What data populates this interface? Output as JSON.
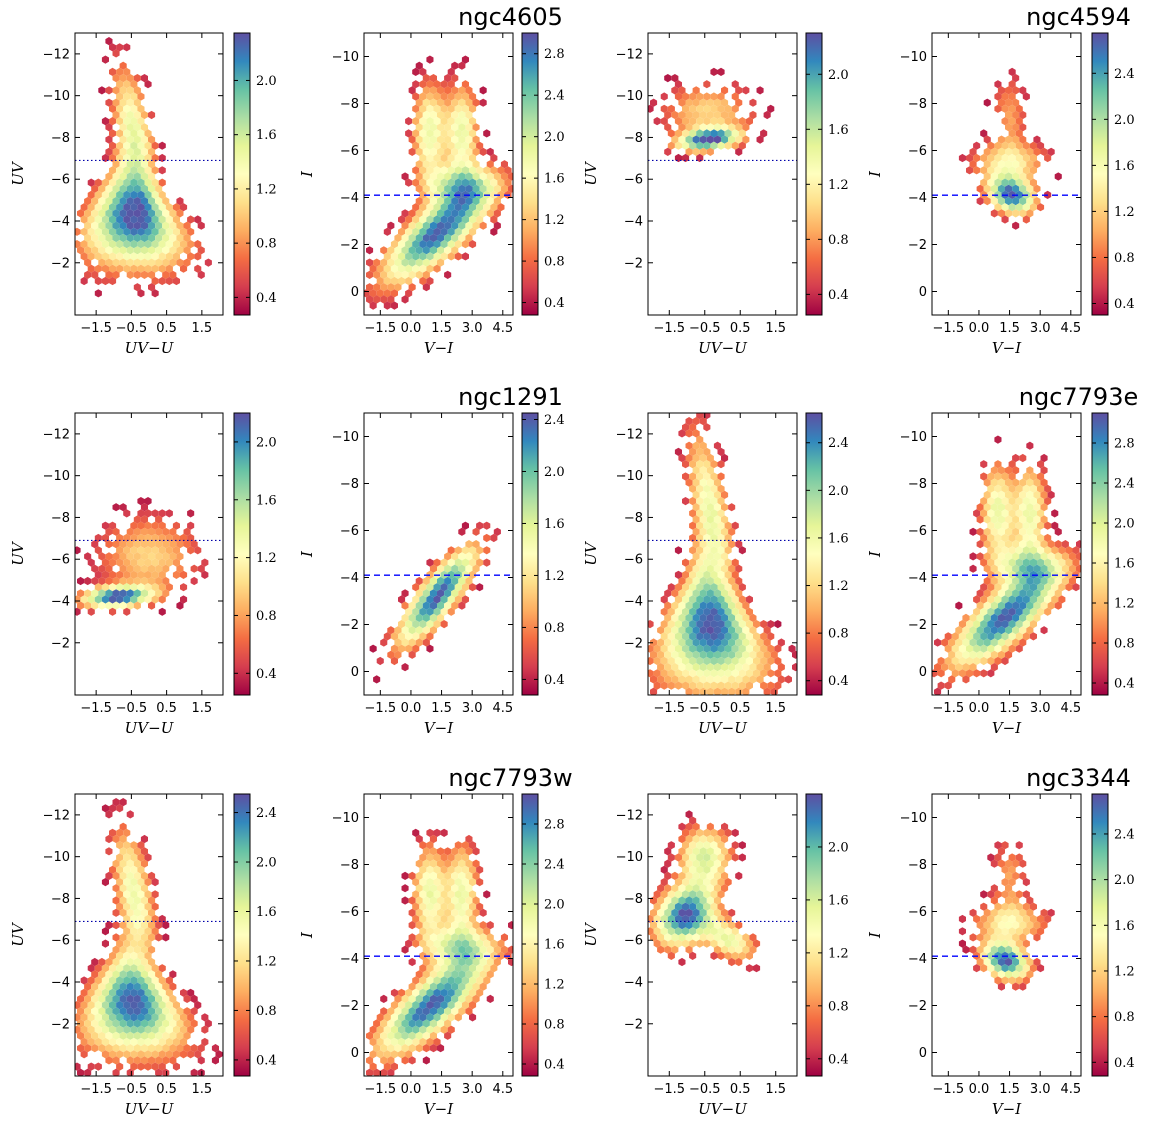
{
  "chart_data": [
    {
      "type": "scatter",
      "title": "",
      "xlabel": "UV−U",
      "ylabel": "UV",
      "xlim": [
        -2.1,
        2.1
      ],
      "ylim": [
        -13,
        0.5
      ],
      "xticks": [
        "−1.5",
        "−0.5",
        "0.5",
        "1.5"
      ],
      "xtick_values": [
        -1.5,
        -0.5,
        0.5,
        1.5
      ],
      "yticks": [
        "−12",
        "−10",
        "−8",
        "−6",
        "−4",
        "−2"
      ],
      "ytick_values": [
        -12,
        -10,
        -8,
        -6,
        -4,
        -2
      ],
      "hline": {
        "y": -6.9,
        "style": "dotted"
      },
      "cbar": {
        "min": 0.27,
        "max": 2.35,
        "ticks": [
          "0.4",
          "0.8",
          "1.2",
          "1.6",
          "2.0"
        ],
        "tick_values": [
          0.4,
          0.8,
          1.2,
          1.6,
          2.0
        ]
      },
      "cmc": "wedge",
      "peak": {
        "x": -0.5,
        "y": -4.2
      }
    },
    {
      "type": "scatter",
      "title": "ngc4605",
      "xlabel": "V−I",
      "ylabel": "I",
      "xlim": [
        -2.3,
        5.0
      ],
      "ylim": [
        -11,
        1
      ],
      "xticks": [
        "−1.5",
        "0.0",
        "1.5",
        "3.0",
        "4.5"
      ],
      "xtick_values": [
        -1.5,
        0.0,
        1.5,
        3.0,
        4.5
      ],
      "yticks": [
        "−10",
        "−8",
        "−6",
        "−4",
        "−2",
        "0"
      ],
      "ytick_values": [
        -10,
        -8,
        -6,
        -4,
        -2,
        0
      ],
      "hline": {
        "y": -4.1,
        "style": "dashed"
      },
      "cbar": {
        "min": 0.28,
        "max": 3.0,
        "ticks": [
          "0.4",
          "0.8",
          "1.2",
          "1.6",
          "2.0",
          "2.4",
          "2.8"
        ],
        "tick_values": [
          0.4,
          0.8,
          1.2,
          1.6,
          2.0,
          2.4,
          2.8
        ]
      },
      "cmc": "vi_double",
      "peak": {
        "x": 1.3,
        "y": -2.5
      }
    },
    {
      "type": "scatter",
      "title": "",
      "xlabel": "UV−U",
      "ylabel": "UV",
      "xlim": [
        -2.1,
        2.1
      ],
      "ylim": [
        -13,
        0.5
      ],
      "xticks": [
        "−1.5",
        "−0.5",
        "0.5",
        "1.5"
      ],
      "xtick_values": [
        -1.5,
        -0.5,
        0.5,
        1.5
      ],
      "yticks": [
        "−12",
        "−10",
        "−8",
        "−6",
        "−4",
        "−2"
      ],
      "ytick_values": [
        -12,
        -10,
        -8,
        -6,
        -4,
        -2
      ],
      "hline": {
        "y": -6.9,
        "style": "dotted"
      },
      "cbar": {
        "min": 0.25,
        "max": 2.3,
        "ticks": [
          "0.4",
          "0.8",
          "1.2",
          "1.6",
          "2.0"
        ],
        "tick_values": [
          0.4,
          0.8,
          1.2,
          1.6,
          2.0
        ]
      },
      "cmc": "bright_blob",
      "peak": {
        "x": -0.4,
        "y": -7.9
      }
    },
    {
      "type": "scatter",
      "title": "ngc4594",
      "xlabel": "V−I",
      "ylabel": "I",
      "xlim": [
        -2.3,
        5.0
      ],
      "ylim": [
        -11,
        1
      ],
      "xticks": [
        "−1.5",
        "0.0",
        "1.5",
        "3.0",
        "4.5"
      ],
      "xtick_values": [
        -1.5,
        0.0,
        1.5,
        3.0,
        4.5
      ],
      "yticks": [
        "−10",
        "−8",
        "−6",
        "−4",
        "−2",
        "0"
      ],
      "ytick_values": [
        -10,
        -8,
        -6,
        -4,
        -2,
        0
      ],
      "hline": {
        "y": -4.1,
        "style": "dashed"
      },
      "cbar": {
        "min": 0.3,
        "max": 2.75,
        "ticks": [
          "0.4",
          "0.8",
          "1.2",
          "1.6",
          "2.0",
          "2.4"
        ],
        "tick_values": [
          0.4,
          0.8,
          1.2,
          1.6,
          2.0,
          2.4
        ]
      },
      "cmc": "vi_blob",
      "peak": {
        "x": 1.6,
        "y": -4.1
      }
    },
    {
      "type": "scatter",
      "title": "",
      "xlabel": "UV−U",
      "ylabel": "UV",
      "xlim": [
        -2.1,
        2.1
      ],
      "ylim": [
        -13,
        0.5
      ],
      "xticks": [
        "−1.5",
        "−0.5",
        "0.5",
        "1.5"
      ],
      "xtick_values": [
        -1.5,
        -0.5,
        0.5,
        1.5
      ],
      "yticks": [
        "−12",
        "−10",
        "−8",
        "−6",
        "−4",
        "−2"
      ],
      "ytick_values": [
        -12,
        -10,
        -8,
        -6,
        -4,
        -2
      ],
      "hline": {
        "y": -6.9,
        "style": "dotted"
      },
      "cbar": {
        "min": 0.25,
        "max": 2.2,
        "ticks": [
          "0.4",
          "0.8",
          "1.2",
          "1.6",
          "2.0"
        ],
        "tick_values": [
          0.4,
          0.8,
          1.2,
          1.6,
          2.0
        ]
      },
      "cmc": "low_blob",
      "peak": {
        "x": -0.9,
        "y": -4.2
      }
    },
    {
      "type": "scatter",
      "title": "ngc1291",
      "xlabel": "V−I",
      "ylabel": "I",
      "xlim": [
        -2.3,
        5.0
      ],
      "ylim": [
        -11,
        1
      ],
      "xticks": [
        "−1.5",
        "0.0",
        "1.5",
        "3.0",
        "4.5"
      ],
      "xtick_values": [
        -1.5,
        0.0,
        1.5,
        3.0,
        4.5
      ],
      "yticks": [
        "−10",
        "−8",
        "−6",
        "−4",
        "−2",
        "0"
      ],
      "ytick_values": [
        -10,
        -8,
        -6,
        -4,
        -2,
        0
      ],
      "hline": {
        "y": -4.1,
        "style": "dashed"
      },
      "cbar": {
        "min": 0.28,
        "max": 2.45,
        "ticks": [
          "0.4",
          "0.8",
          "1.2",
          "1.6",
          "2.0",
          "2.4"
        ],
        "tick_values": [
          0.4,
          0.8,
          1.2,
          1.6,
          2.0,
          2.4
        ]
      },
      "cmc": "vi_diag",
      "peak": {
        "x": 1.3,
        "y": -3.2
      }
    },
    {
      "type": "scatter",
      "title": "",
      "xlabel": "UV−U",
      "ylabel": "UV",
      "xlim": [
        -2.1,
        2.1
      ],
      "ylim": [
        -13,
        0.5
      ],
      "xticks": [
        "−1.5",
        "−0.5",
        "0.5",
        "1.5"
      ],
      "xtick_values": [
        -1.5,
        -0.5,
        0.5,
        1.5
      ],
      "yticks": [
        "−12",
        "−10",
        "−8",
        "−6",
        "−4",
        "−2"
      ],
      "ytick_values": [
        -12,
        -10,
        -8,
        -6,
        -4,
        -2
      ],
      "hline": {
        "y": -6.9,
        "style": "dotted"
      },
      "cbar": {
        "min": 0.28,
        "max": 2.65,
        "ticks": [
          "0.4",
          "0.8",
          "1.2",
          "1.6",
          "2.0",
          "2.4"
        ],
        "tick_values": [
          0.4,
          0.8,
          1.2,
          1.6,
          2.0,
          2.4
        ]
      },
      "cmc": "wedge_tall",
      "peak": {
        "x": -0.4,
        "y": -2.8
      }
    },
    {
      "type": "scatter",
      "title": "ngc7793e",
      "xlabel": "V−I",
      "ylabel": "I",
      "xlim": [
        -2.3,
        5.0
      ],
      "ylim": [
        -11,
        1
      ],
      "xticks": [
        "−1.5",
        "0.0",
        "1.5",
        "3.0",
        "4.5"
      ],
      "xtick_values": [
        -1.5,
        0.0,
        1.5,
        3.0,
        4.5
      ],
      "yticks": [
        "−10",
        "−8",
        "−6",
        "−4",
        "−2",
        "0"
      ],
      "ytick_values": [
        -10,
        -8,
        -6,
        -4,
        -2,
        0
      ],
      "hline": {
        "y": -4.1,
        "style": "dashed"
      },
      "cbar": {
        "min": 0.28,
        "max": 3.1,
        "ticks": [
          "0.4",
          "0.8",
          "1.2",
          "1.6",
          "2.0",
          "2.4",
          "2.8"
        ],
        "tick_values": [
          0.4,
          0.8,
          1.2,
          1.6,
          2.0,
          2.4,
          2.8
        ]
      },
      "cmc": "vi_double",
      "peak": {
        "x": 1.3,
        "y": -2.3
      }
    },
    {
      "type": "scatter",
      "title": "",
      "xlabel": "UV−U",
      "ylabel": "UV",
      "xlim": [
        -2.1,
        2.1
      ],
      "ylim": [
        -13,
        0.5
      ],
      "xticks": [
        "−1.5",
        "−0.5",
        "0.5",
        "1.5"
      ],
      "xtick_values": [
        -1.5,
        -0.5,
        0.5,
        1.5
      ],
      "yticks": [
        "−12",
        "−10",
        "−8",
        "−6",
        "−4",
        "−2"
      ],
      "ytick_values": [
        -12,
        -10,
        -8,
        -6,
        -4,
        -2
      ],
      "hline": {
        "y": -6.9,
        "style": "dotted"
      },
      "cbar": {
        "min": 0.27,
        "max": 2.55,
        "ticks": [
          "0.4",
          "0.8",
          "1.2",
          "1.6",
          "2.0",
          "2.4"
        ],
        "tick_values": [
          0.4,
          0.8,
          1.2,
          1.6,
          2.0,
          2.4
        ]
      },
      "cmc": "wedge",
      "peak": {
        "x": -0.5,
        "y": -3.0
      }
    },
    {
      "type": "scatter",
      "title": "ngc7793w",
      "xlabel": "V−I",
      "ylabel": "I",
      "xlim": [
        -2.3,
        5.0
      ],
      "ylim": [
        -11,
        1
      ],
      "xticks": [
        "−1.5",
        "0.0",
        "1.5",
        "3.0",
        "4.5"
      ],
      "xtick_values": [
        -1.5,
        0.0,
        1.5,
        3.0,
        4.5
      ],
      "yticks": [
        "−10",
        "−8",
        "−6",
        "−4",
        "−2",
        "0"
      ],
      "ytick_values": [
        -10,
        -8,
        -6,
        -4,
        -2,
        0
      ],
      "hline": {
        "y": -4.1,
        "style": "dashed"
      },
      "cbar": {
        "min": 0.28,
        "max": 3.1,
        "ticks": [
          "0.4",
          "0.8",
          "1.2",
          "1.6",
          "2.0",
          "2.4",
          "2.8"
        ],
        "tick_values": [
          0.4,
          0.8,
          1.2,
          1.6,
          2.0,
          2.4,
          2.8
        ]
      },
      "cmc": "vi_double",
      "peak": {
        "x": 1.0,
        "y": -2.0
      }
    },
    {
      "type": "scatter",
      "title": "",
      "xlabel": "UV−U",
      "ylabel": "UV",
      "xlim": [
        -2.1,
        2.1
      ],
      "ylim": [
        -13,
        0.5
      ],
      "xticks": [
        "−1.5",
        "−0.5",
        "0.5",
        "1.5"
      ],
      "xtick_values": [
        -1.5,
        -0.5,
        0.5,
        1.5
      ],
      "yticks": [
        "−12",
        "−10",
        "−8",
        "−6",
        "−4",
        "−2"
      ],
      "ytick_values": [
        -12,
        -10,
        -8,
        -6,
        -4,
        -2
      ],
      "hline": {
        "y": -6.9,
        "style": "dotted"
      },
      "cbar": {
        "min": 0.27,
        "max": 2.4,
        "ticks": [
          "0.4",
          "0.8",
          "1.2",
          "1.6",
          "2.0"
        ],
        "tick_values": [
          0.4,
          0.8,
          1.2,
          1.6,
          2.0
        ]
      },
      "cmc": "inv_wedge",
      "peak": {
        "x": -0.8,
        "y": -7.2
      }
    },
    {
      "type": "scatter",
      "title": "ngc3344",
      "xlabel": "V−I",
      "ylabel": "I",
      "xlim": [
        -2.3,
        5.0
      ],
      "ylim": [
        -11,
        1
      ],
      "xticks": [
        "−1.5",
        "0.0",
        "1.5",
        "3.0",
        "4.5"
      ],
      "xtick_values": [
        -1.5,
        0.0,
        1.5,
        3.0,
        4.5
      ],
      "yticks": [
        "−10",
        "−8",
        "−6",
        "−4",
        "−2",
        "0"
      ],
      "ytick_values": [
        -10,
        -8,
        -6,
        -4,
        -2,
        0
      ],
      "hline": {
        "y": -4.1,
        "style": "dashed"
      },
      "cbar": {
        "min": 0.28,
        "max": 2.75,
        "ticks": [
          "0.4",
          "0.8",
          "1.2",
          "1.6",
          "2.0",
          "2.4"
        ],
        "tick_values": [
          0.4,
          0.8,
          1.2,
          1.6,
          2.0,
          2.4
        ]
      },
      "cmc": "vi_blob",
      "peak": {
        "x": 1.3,
        "y": -3.9
      }
    }
  ],
  "colors": {
    "colormap": [
      "#9e0142",
      "#d53e4f",
      "#f46d43",
      "#fdae61",
      "#fee08b",
      "#ffffbf",
      "#e6f598",
      "#abdda4",
      "#66c2a5",
      "#3288bd",
      "#5e4fa2"
    ],
    "dashed_line": "#0000ff",
    "dotted_line": "#0000aa"
  }
}
